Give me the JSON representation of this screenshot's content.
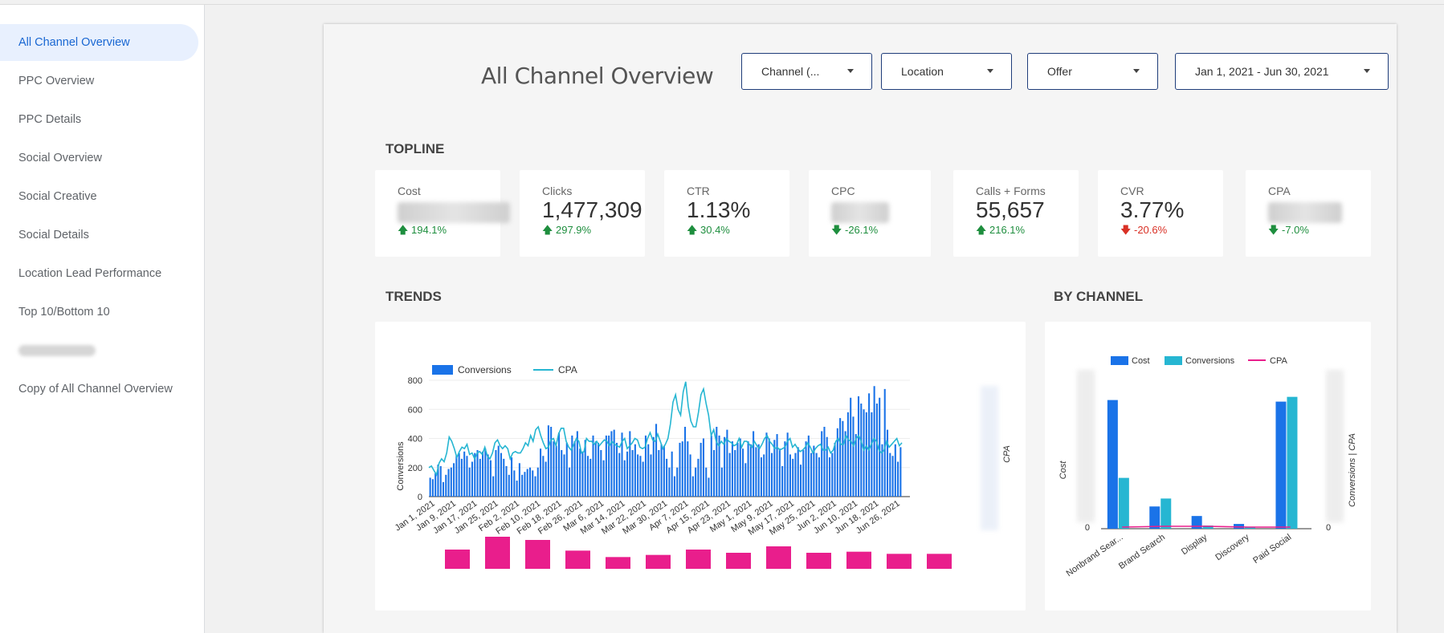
{
  "sidebar": {
    "items": [
      {
        "label": "All Channel Overview",
        "active": true
      },
      {
        "label": "PPC Overview"
      },
      {
        "label": "PPC Details"
      },
      {
        "label": "Social Overview"
      },
      {
        "label": "Social Creative"
      },
      {
        "label": "Social Details"
      },
      {
        "label": "Location Lead Performance"
      },
      {
        "label": "Top 10/Bottom 10"
      },
      {
        "label": "Copy of All Channel Overview"
      }
    ]
  },
  "header": {
    "title": "All Channel Overview",
    "filters": {
      "channel": "Channel (...",
      "location": "Location",
      "offer": "Offer",
      "date_range": "Jan 1, 2021 - Jun 30, 2021"
    }
  },
  "sections": {
    "topline": "TOPLINE",
    "trends": "TRENDS",
    "by_channel": "BY CHANNEL"
  },
  "kpis": [
    {
      "label": "Cost",
      "value": null,
      "delta": "194.1%",
      "direction": "up",
      "tone": "positive"
    },
    {
      "label": "Clicks",
      "value": "1,477,309",
      "delta": "297.9%",
      "direction": "up",
      "tone": "positive"
    },
    {
      "label": "CTR",
      "value": "1.13%",
      "delta": "30.4%",
      "direction": "up",
      "tone": "positive"
    },
    {
      "label": "CPC",
      "value": null,
      "delta": "-26.1%",
      "direction": "down",
      "tone": "positive"
    },
    {
      "label": "Calls + Forms",
      "value": "55,657",
      "delta": "216.1%",
      "direction": "up",
      "tone": "positive"
    },
    {
      "label": "CVR",
      "value": "3.77%",
      "delta": "-20.6%",
      "direction": "down",
      "tone": "negative"
    },
    {
      "label": "CPA",
      "value": null,
      "delta": "-7.0%",
      "direction": "down",
      "tone": "positive"
    }
  ],
  "colors": {
    "conversions": "#1a73e8",
    "cpa_line": "#26b6d2",
    "conversions_bar2": "#26b6d2",
    "cpa_pink": "#e91e8c",
    "positive": "#1e8e3e",
    "negative": "#d93025"
  },
  "chart_data": [
    {
      "type": "bar",
      "title": "TRENDS",
      "legend": [
        "Conversions",
        "CPA"
      ],
      "xlabel": "",
      "ylabel": "Conversions",
      "y2label": "CPA",
      "ylim": [
        0,
        800
      ],
      "yticks": [
        "0",
        "200",
        "400",
        "600",
        "800"
      ],
      "x_tick_labels": [
        "Jan 1, 2021",
        "Jan 9, 2021",
        "Jan 17, 2021",
        "Jan 25, 2021",
        "Feb 2, 2021",
        "Feb 10, 2021",
        "Feb 18, 2021",
        "Feb 26, 2021",
        "Mar 6, 2021",
        "Mar 14, 2021",
        "Mar 22, 2021",
        "Mar 30, 2021",
        "Apr 7, 2021",
        "Apr 15, 2021",
        "Apr 23, 2021",
        "May 1, 2021",
        "May 9, 2021",
        "May 17, 2021",
        "May 25, 2021",
        "Jun 2, 2021",
        "Jun 10, 2021",
        "Jun 18, 2021",
        "Jun 26, 2021"
      ],
      "series": [
        {
          "name": "Conversions",
          "kind": "bar",
          "values": [
            130,
            120,
            160,
            220,
            210,
            100,
            150,
            190,
            200,
            230,
            280,
            300,
            260,
            310,
            280,
            200,
            240,
            300,
            320,
            260,
            310,
            330,
            290,
            250,
            140,
            320,
            350,
            300,
            260,
            210,
            150,
            270,
            180,
            110,
            230,
            150,
            170,
            190,
            200,
            180,
            140,
            200,
            330,
            280,
            240,
            490,
            480,
            380,
            350,
            440,
            320,
            290,
            370,
            200,
            420,
            380,
            450,
            330,
            310,
            390,
            280,
            260,
            420,
            380,
            370,
            320,
            250,
            420,
            420,
            450,
            460,
            370,
            300,
            440,
            250,
            310,
            450,
            320,
            360,
            290,
            280,
            240,
            420,
            360,
            290,
            410,
            500,
            320,
            360,
            350,
            260,
            200,
            310,
            140,
            200,
            370,
            380,
            480,
            380,
            290,
            140,
            200,
            260,
            370,
            400,
            200,
            130,
            420,
            320,
            480,
            420,
            200,
            410,
            460,
            300,
            380,
            320,
            370,
            400,
            330,
            230,
            380,
            360,
            450,
            340,
            360,
            270,
            290,
            440,
            400,
            300,
            390,
            430,
            330,
            210,
            380,
            440,
            290,
            260,
            300,
            340,
            220,
            320,
            380,
            420,
            300,
            350,
            300,
            270,
            450,
            480,
            410,
            270,
            300,
            370,
            470,
            540,
            520,
            450,
            580,
            680,
            550,
            430,
            690,
            640,
            600,
            580,
            710,
            580,
            760,
            640,
            680,
            360,
            740,
            460,
            300,
            280,
            360,
            240,
            340
          ],
          "note": "approximate daily conversions, Jan 1 - Jun 30, 2021"
        },
        {
          "name": "CPA",
          "kind": "line",
          "axis": "right",
          "values": [
            200,
            210,
            180,
            150,
            230,
            260,
            240,
            300,
            410,
            380,
            330,
            270,
            310,
            340,
            330,
            360,
            290,
            300,
            260,
            300,
            310,
            290,
            340,
            280,
            260,
            300,
            370,
            390,
            350,
            330,
            350,
            330,
            260,
            300,
            310,
            300,
            300,
            330,
            370,
            350,
            420,
            380,
            460,
            480,
            420,
            370,
            330,
            340,
            390,
            400,
            350,
            430,
            470,
            470,
            380,
            340,
            320,
            360,
            400,
            380,
            300,
            310,
            400,
            380,
            380,
            360,
            380,
            350,
            370,
            390,
            380,
            350,
            380,
            360,
            350,
            340,
            380,
            400,
            330,
            350,
            370,
            400,
            390,
            340,
            330,
            340,
            400,
            440,
            390,
            380,
            430,
            380,
            330,
            360,
            400,
            500,
            650,
            700,
            600,
            560,
            720,
            790,
            620,
            520,
            480,
            480,
            580,
            700,
            740,
            640,
            560,
            420,
            460,
            380,
            350,
            380,
            360,
            400,
            380,
            370,
            350,
            360,
            400,
            340,
            380,
            380,
            360,
            340,
            380,
            350,
            330,
            360,
            400,
            420,
            380,
            360,
            330,
            340,
            320,
            330,
            340,
            380,
            400,
            340,
            360,
            330,
            310,
            320,
            340,
            370,
            340,
            300,
            330,
            350,
            360,
            320,
            320,
            340,
            300,
            320,
            380,
            400,
            360,
            360,
            420,
            390,
            380,
            350,
            400,
            420,
            380,
            320,
            350,
            320,
            360,
            400,
            380,
            320,
            300,
            320,
            380,
            340,
            360,
            380,
            400,
            350,
            370
          ]
        }
      ],
      "weekly_totals_pink": [
        18,
        30,
        27,
        17,
        11,
        13,
        18,
        15,
        21,
        15,
        16,
        14,
        14
      ]
    },
    {
      "type": "bar",
      "title": "BY CHANNEL",
      "legend": [
        "Cost",
        "Conversions",
        "CPA"
      ],
      "categories": [
        "Nonbrand Sear...",
        "Brand Search",
        "Display",
        "Discovery",
        "Paid Social"
      ],
      "ylabel": "Cost",
      "y2label": "Conversions | CPA",
      "ylim": [
        0,
        1.0
      ],
      "y_tick_labels_visible": [
        "0"
      ],
      "y2_tick_labels_visible": [
        "0"
      ],
      "series": [
        {
          "name": "Cost",
          "kind": "bar",
          "values": [
            0.81,
            0.14,
            0.08,
            0.03,
            0.8
          ]
        },
        {
          "name": "Conversions",
          "kind": "bar",
          "values": [
            0.32,
            0.19,
            0.02,
            0.01,
            0.83
          ]
        },
        {
          "name": "CPA",
          "kind": "line",
          "values": [
            0.005,
            0.01,
            0.01,
            0.005,
            0.005
          ]
        }
      ]
    }
  ]
}
